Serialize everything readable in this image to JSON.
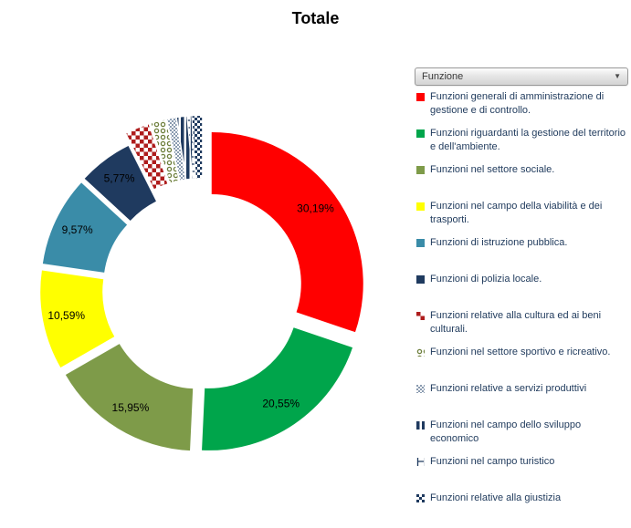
{
  "header": {
    "title": "Totale"
  },
  "filter": {
    "value": "Funzione",
    "icon": "chevron-down"
  },
  "colors": {
    "background": "#ffffff",
    "legend_text": "#1f3a5c",
    "slice_label_text": "#000000"
  },
  "chart_data": {
    "type": "pie",
    "subtype": "doughnut-exploded",
    "title": "Totale",
    "legend_position": "right",
    "value_format": "percent, comma decimal separator",
    "patterns": {
      "checker-red": {
        "fg": "#ae1c1c",
        "bg": "#ffffff"
      },
      "rings-olive": {
        "fg": "#6e7f3c",
        "bg": "#ffffff"
      },
      "checker-fine-gray": {
        "fg": "#8a9bb0",
        "bg": "#ffffff"
      },
      "stripes-navy": {
        "fg": "#1f3a5f",
        "bg": "#ffffff"
      },
      "ladder-navy": {
        "fg": "#1f3a5f",
        "bg": "#ffffff"
      },
      "checker-navy": {
        "fg": "#1f3a5f",
        "bg": "#ffffff"
      }
    },
    "slices": [
      {
        "label": "Funzioni generali di amministrazione di gestione e di controllo.",
        "value": 30.19,
        "display": "30,19%",
        "color": "#ff0000",
        "fill": "solid",
        "label_shown": true
      },
      {
        "label": "Funzioni riguardanti la gestione del territorio e dell'ambiente.",
        "value": 20.55,
        "display": "20,55%",
        "color": "#00a54b",
        "fill": "solid",
        "label_shown": true
      },
      {
        "label": "Funzioni nel settore sociale.",
        "value": 15.95,
        "display": "15,95%",
        "color": "#7e9b49",
        "fill": "solid",
        "label_shown": true
      },
      {
        "label": "Funzioni nel campo della viabilità e dei trasporti.",
        "value": 10.59,
        "display": "10,59%",
        "color": "#ffff00",
        "fill": "solid",
        "label_shown": true
      },
      {
        "label": "Funzioni di istruzione pubblica.",
        "value": 9.57,
        "display": "9,57%",
        "color": "#3a8ca8",
        "fill": "solid",
        "label_shown": true
      },
      {
        "label": "Funzioni di polizia locale.",
        "value": 5.77,
        "display": "5,77%",
        "color": "#1f3a5f",
        "fill": "solid",
        "label_shown": true
      },
      {
        "label": "Funzioni relative alla cultura ed ai beni culturali.",
        "value": 2.52,
        "display": "",
        "color": "#ae1c1c",
        "fill": "checker-red",
        "label_shown": false,
        "estimated": true
      },
      {
        "label": "Funzioni nel settore sportivo e ricreativo.",
        "value": 1.55,
        "display": "",
        "color": "#6e7f3c",
        "fill": "rings-olive",
        "label_shown": false,
        "estimated": true
      },
      {
        "label": "Funzioni relative a servizi produttivi",
        "value": 0.9,
        "display": "",
        "color": "#8a9bb0",
        "fill": "checker-fine-gray",
        "label_shown": false,
        "estimated": true
      },
      {
        "label": "Funzioni nel campo dello sviluppo economico",
        "value": 1.0,
        "display": "",
        "color": "#1f3a5f",
        "fill": "stripes-navy",
        "label_shown": false,
        "estimated": true
      },
      {
        "label": "Funzioni nel campo turistico",
        "value": 0.38,
        "display": "",
        "color": "#1f3a5f",
        "fill": "ladder-navy",
        "label_shown": false,
        "estimated": true
      },
      {
        "label": "Funzioni relative alla giustizia",
        "value": 1.03,
        "display": "",
        "color": "#1f3a5f",
        "fill": "checker-navy",
        "label_shown": false,
        "estimated": true
      }
    ]
  }
}
